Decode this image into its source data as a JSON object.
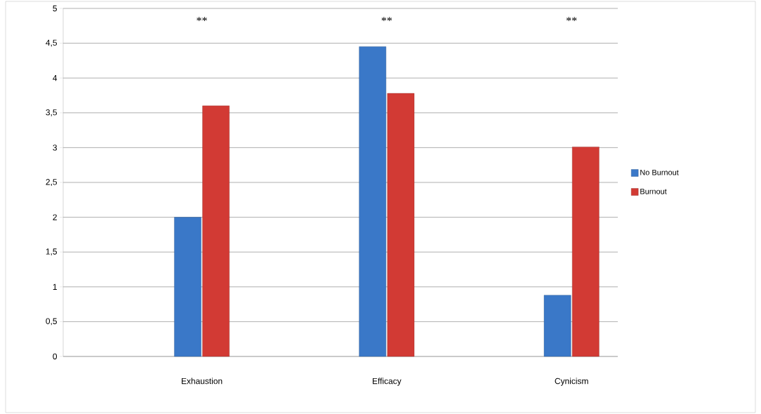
{
  "chart_data": {
    "type": "bar",
    "categories": [
      null,
      "Exhaustion",
      null,
      "Efficacy",
      null,
      "Cynicism"
    ],
    "series": [
      {
        "name": "No Burnout",
        "color": "#3a78c8",
        "values": [
          null,
          2.0,
          null,
          4.45,
          null,
          0.88
        ]
      },
      {
        "name": "Burnout",
        "color": "#d23a34",
        "values": [
          null,
          3.6,
          null,
          3.78,
          null,
          3.01
        ]
      }
    ],
    "ylim": [
      0,
      5
    ],
    "yticks": [
      0,
      {
        "value": 0.5,
        "label": "0,5"
      },
      1,
      {
        "value": 1.5,
        "label": "1,5"
      },
      2,
      {
        "value": 2.5,
        "label": "2,5"
      },
      3,
      {
        "value": 3.5,
        "label": "3,5"
      },
      4,
      {
        "value": 4.5,
        "label": "4,5"
      },
      5
    ],
    "grid": "y",
    "legend": "right",
    "annotations": [
      "**",
      "**",
      "**"
    ]
  }
}
